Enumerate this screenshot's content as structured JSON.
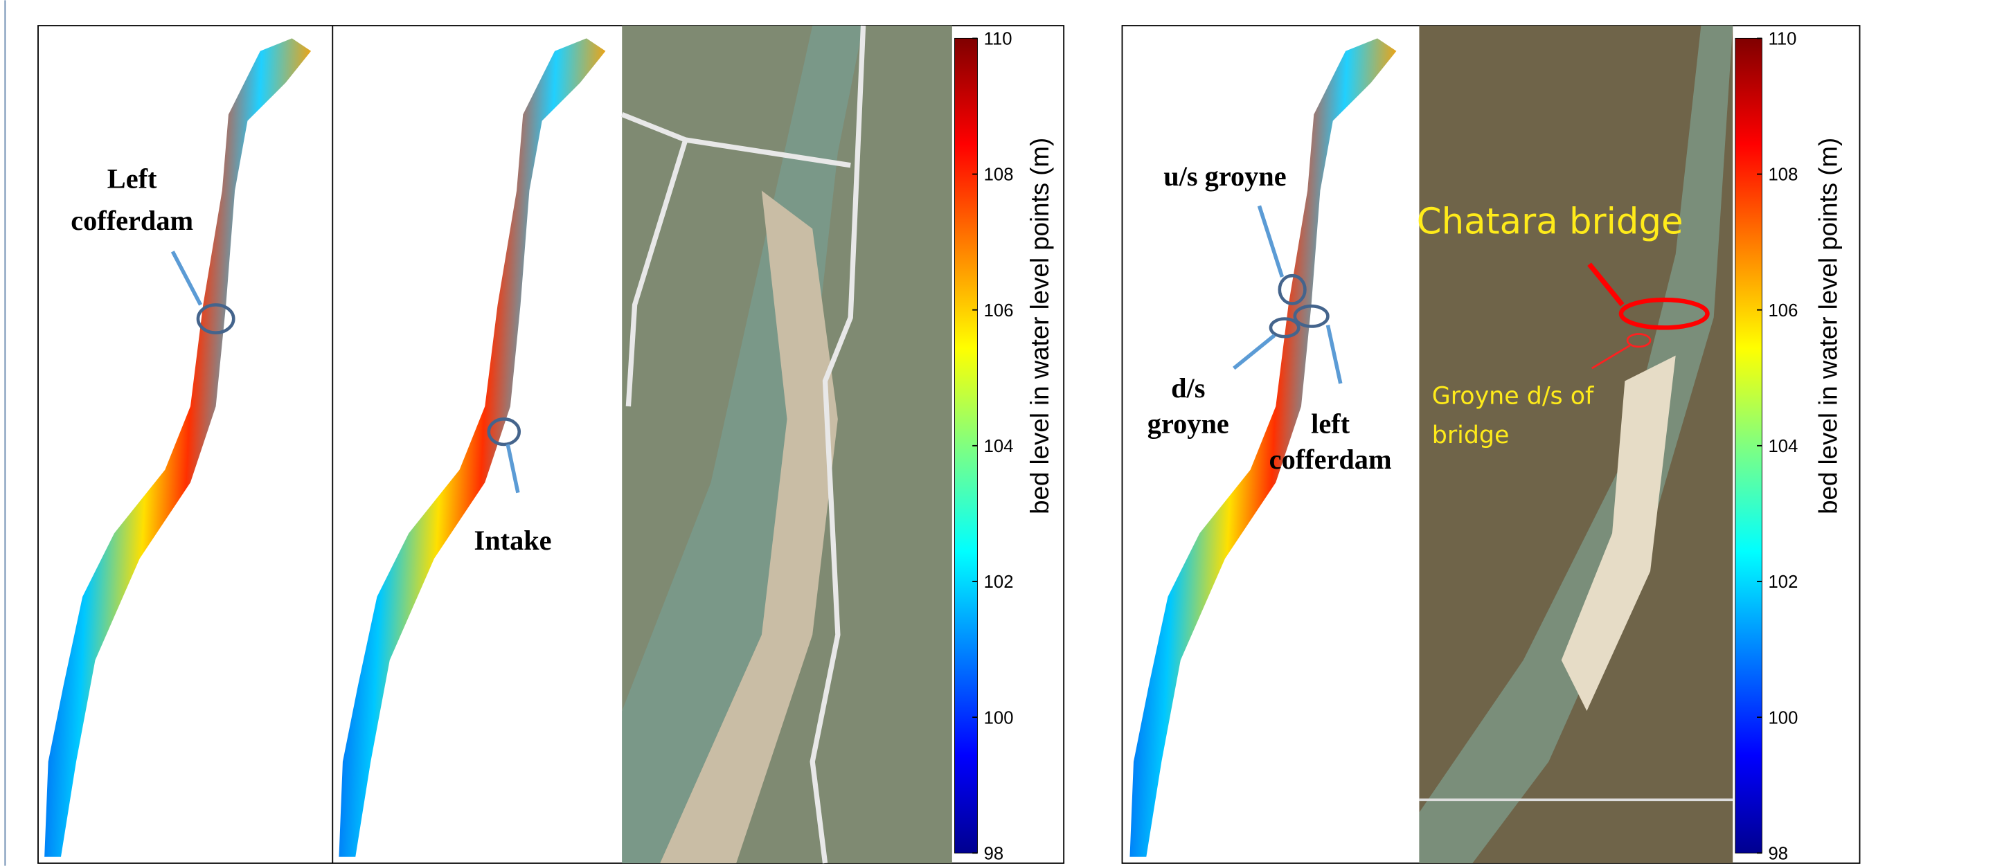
{
  "left_figure": {
    "annotations": {
      "left_cofferdam": [
        "Left",
        "cofferdam"
      ],
      "intake": "Intake"
    },
    "colorbar": {
      "label": "bed level in water level points (m)",
      "range": [
        98,
        110
      ],
      "ticks": [
        98,
        100,
        102,
        104,
        106,
        108,
        110
      ]
    }
  },
  "right_figure": {
    "annotations": {
      "us_groyne": "u/s groyne",
      "ds_groyne": [
        "d/s",
        "groyne"
      ],
      "left_cofferdam": [
        "left",
        "cofferdam"
      ],
      "chatara_bridge": "Chatara bridge",
      "groyne_ds_bridge": [
        "Groyne d/s of",
        "bridge"
      ]
    },
    "colorbar": {
      "label": "bed level in water level points (m)",
      "range": [
        98,
        110
      ],
      "ticks": [
        98,
        100,
        102,
        104,
        106,
        108,
        110
      ]
    }
  }
}
